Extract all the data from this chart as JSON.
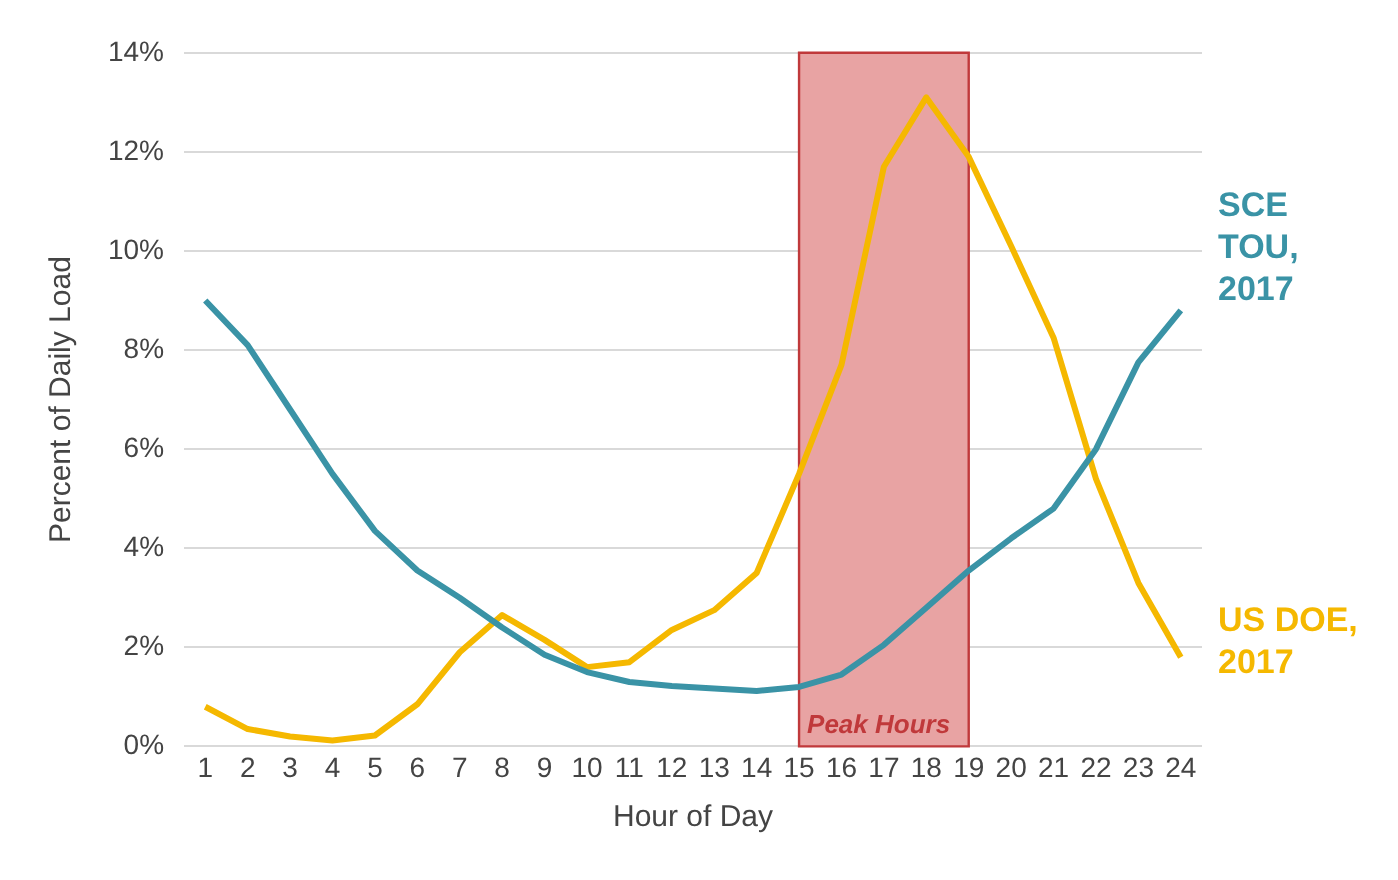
{
  "chart_data": {
    "type": "line",
    "xlabel": "Hour of Day",
    "ylabel": "Percent of Daily Load",
    "x": [
      1,
      2,
      3,
      4,
      5,
      6,
      7,
      8,
      9,
      10,
      11,
      12,
      13,
      14,
      15,
      16,
      17,
      18,
      19,
      20,
      21,
      22,
      23,
      24
    ],
    "series": [
      {
        "name": "SCE TOU, 2017",
        "color": "#3a93a6",
        "values": [
          9.0,
          8.1,
          6.8,
          5.5,
          4.35,
          3.55,
          3.0,
          2.4,
          1.85,
          1.5,
          1.3,
          1.22,
          1.17,
          1.12,
          1.2,
          1.45,
          2.05,
          2.8,
          3.55,
          4.2,
          4.8,
          6.0,
          7.75,
          8.8
        ]
      },
      {
        "name": "US DOE, 2017",
        "color": "#f5b800",
        "values": [
          0.8,
          0.35,
          0.2,
          0.12,
          0.22,
          0.85,
          1.9,
          2.65,
          2.15,
          1.6,
          1.7,
          2.35,
          2.75,
          3.5,
          5.5,
          7.7,
          11.7,
          13.1,
          11.9,
          10.1,
          8.25,
          5.4,
          3.3,
          1.8
        ]
      }
    ],
    "xlim": [
      0.5,
      24.5
    ],
    "xticks": [
      1,
      2,
      3,
      4,
      5,
      6,
      7,
      8,
      9,
      10,
      11,
      12,
      13,
      14,
      15,
      16,
      17,
      18,
      19,
      20,
      21,
      22,
      23,
      24
    ],
    "ylim": [
      0,
      14
    ],
    "yticks": [
      {
        "value": 0,
        "label": "0%"
      },
      {
        "value": 2,
        "label": "2%"
      },
      {
        "value": 4,
        "label": "4%"
      },
      {
        "value": 6,
        "label": "6%"
      },
      {
        "value": 8,
        "label": "8%"
      },
      {
        "value": 10,
        "label": "10%"
      },
      {
        "value": 12,
        "label": "12%"
      },
      {
        "value": 14,
        "label": "14%"
      }
    ],
    "bands": [
      {
        "axis": "x",
        "from": 15,
        "to": 19,
        "label": "Peak Hours",
        "color": "#e8a3a3"
      }
    ],
    "grid": "y",
    "legend": false,
    "marker": "none",
    "line_style": "solid"
  }
}
